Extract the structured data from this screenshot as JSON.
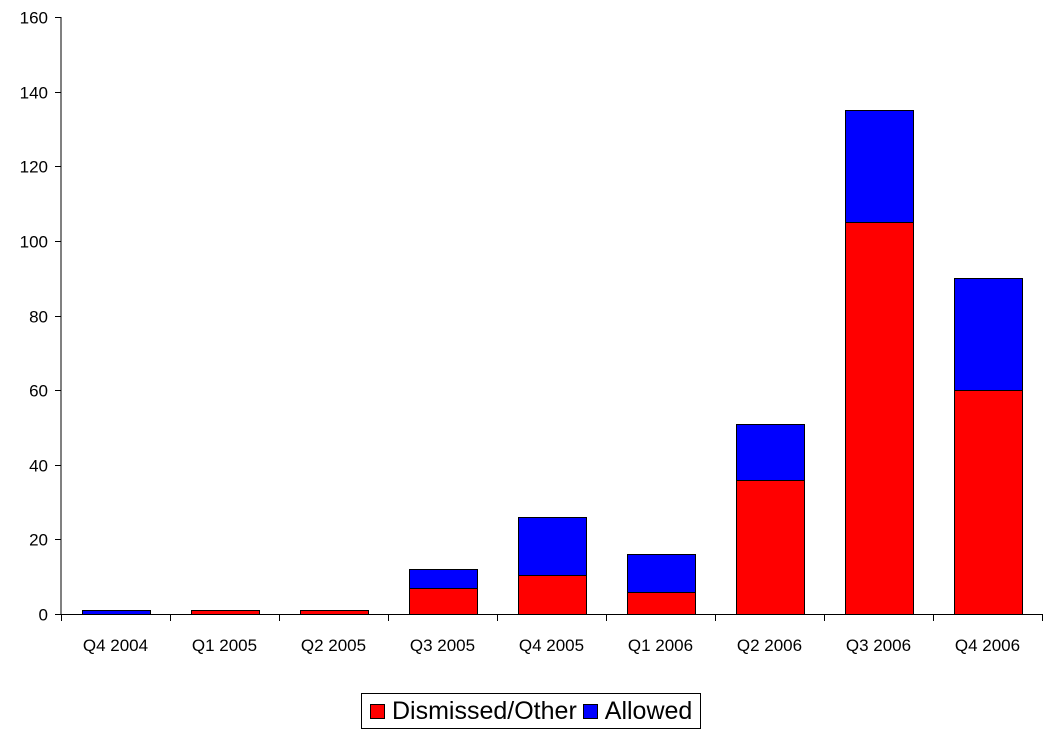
{
  "chart_data": {
    "type": "bar",
    "stacked": true,
    "categories": [
      "Q4 2004",
      "Q1 2005",
      "Q2 2005",
      "Q3 2005",
      "Q4 2005",
      "Q1 2006",
      "Q2 2006",
      "Q3 2006",
      "Q4 2006"
    ],
    "series": [
      {
        "name": "Dismissed/Other",
        "color": "#ff0000",
        "values": [
          0,
          1,
          1,
          7,
          10.5,
          6,
          36,
          105,
          60
        ]
      },
      {
        "name": "Allowed",
        "color": "#0000ff",
        "values": [
          1,
          0,
          0,
          5,
          15.5,
          10,
          15,
          30,
          30
        ]
      }
    ],
    "ylim": [
      0,
      160
    ],
    "y_ticks": [
      0,
      20,
      40,
      60,
      80,
      100,
      120,
      140,
      160
    ],
    "grid": false,
    "legend_position": "bottom-center"
  }
}
